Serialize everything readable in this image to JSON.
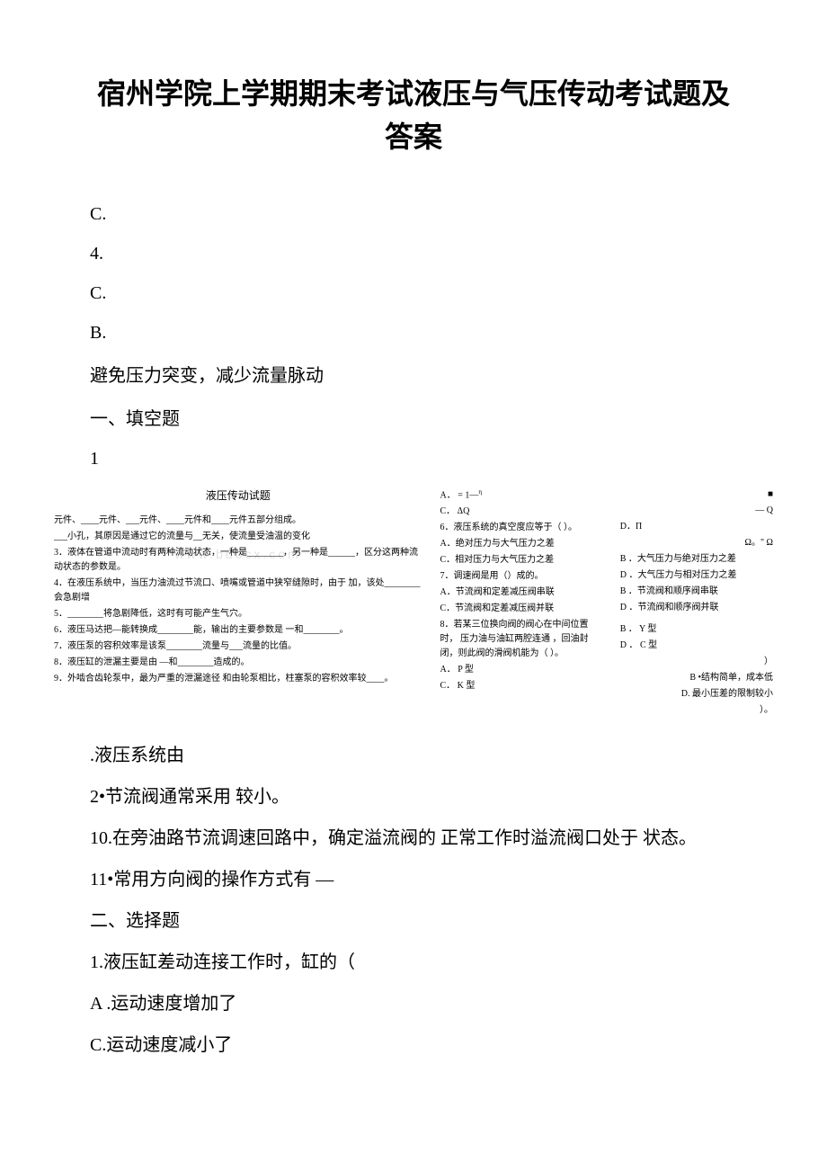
{
  "title": "宿州学院上学期期末考试液压与气压传动考试题及答案",
  "upper_lines": {
    "c1": "C.",
    "n4": "4.",
    "c2": "C.",
    "b1": "B.",
    "long1": "避免压力突变，减少流量脉动",
    "sec1": "一、填空题",
    "n1": "1"
  },
  "dense": {
    "left": {
      "title": "液压传动试题",
      "l1": "元件、____元件、___元件、____元件和____元件五部分组成。",
      "l2": "___小孔，其原因是通过它的流量与__无关，使流量受油温的变化",
      "l3": "3．液体在管道中流动时有两种流动状态，一种是________，另一种是______，区分这两种流动状态的参数是。",
      "l4": "4．在液压系统中，当压力油流过节流口、喷嘴或管道中狭窄缝隙时，由于 加，该处________会急剧增",
      "l5": "5．________将急剧降低，这时有可能产生气穴。",
      "l6": "6．液压马达把—能转换成________能，输出的主要参数是 一和________。",
      "l7": "7．液压泵的容积效率是该泵________流量与___流量的比值。",
      "l8": "8．液压缸的泄漏主要是由 —和________造成的。",
      "l9": "9．外啮合齿轮泵中，最为严重的泄漏途径 和由轮泵相比，柱塞泵的容积效率较____。"
    },
    "right": {
      "colA": {
        "a1": "A．  = 1—",
        "a2": "C．   ΔQ",
        "q6": "6．液压系统的真空度应等于（     ）。",
        "q6a": "A．绝对压力与大气压力之差",
        "q6c": "C．相对压力与大气压力之差",
        "q7": "7．调速阀是用（）成的。",
        "q7a": "A．节流阀和定差减压阀串联",
        "q7c": "C．节流阀和定差减压阀并联",
        "q8": "8．若某三位换向阀的阀心在中间位置时，    压力油与油缸两腔连通   ，回油封闭，则此阀的滑阀机能为（      ）。",
        "q8a": "A． P 型",
        "q8c": "C． K 型"
      },
      "colB": {
        "sup_i": "η",
        "b1_top": "■",
        "b1_q": "—   Q",
        "b2_d": "D．Π",
        "b2_o": "Ω。\" Ω",
        "q6b": "B ．大气压力与绝对压力之差",
        "q6d": "D ．大气压力与相对压力之差",
        "q7b": "B ．节流阀和顺序阀串联",
        "q7d": "D ．节流阀和顺序阀并联",
        "q8b": "B ． Y 型",
        "q8d": "D ． C 型",
        "tail1": "）",
        "tail2": "B •结构简单，成本低",
        "tail3": "D. 最小压差的限制较小",
        "tail4": "）。"
      }
    }
  },
  "lower": {
    "p1": ".液压系统由",
    "p2": "2•节流阀通常采用 较小。",
    "p3": "10.在旁油路节流调速回路中，确定溢流阀的 正常工作时溢流阀口处于 状态。",
    "p4": "11•常用方向阀的操作方式有 —",
    "p5": "二、选择题",
    "p6": "1.液压缸差动连接工作时，缸的（",
    "p7": "A .运动速度增加了",
    "p8": "C.运动速度减小了"
  }
}
